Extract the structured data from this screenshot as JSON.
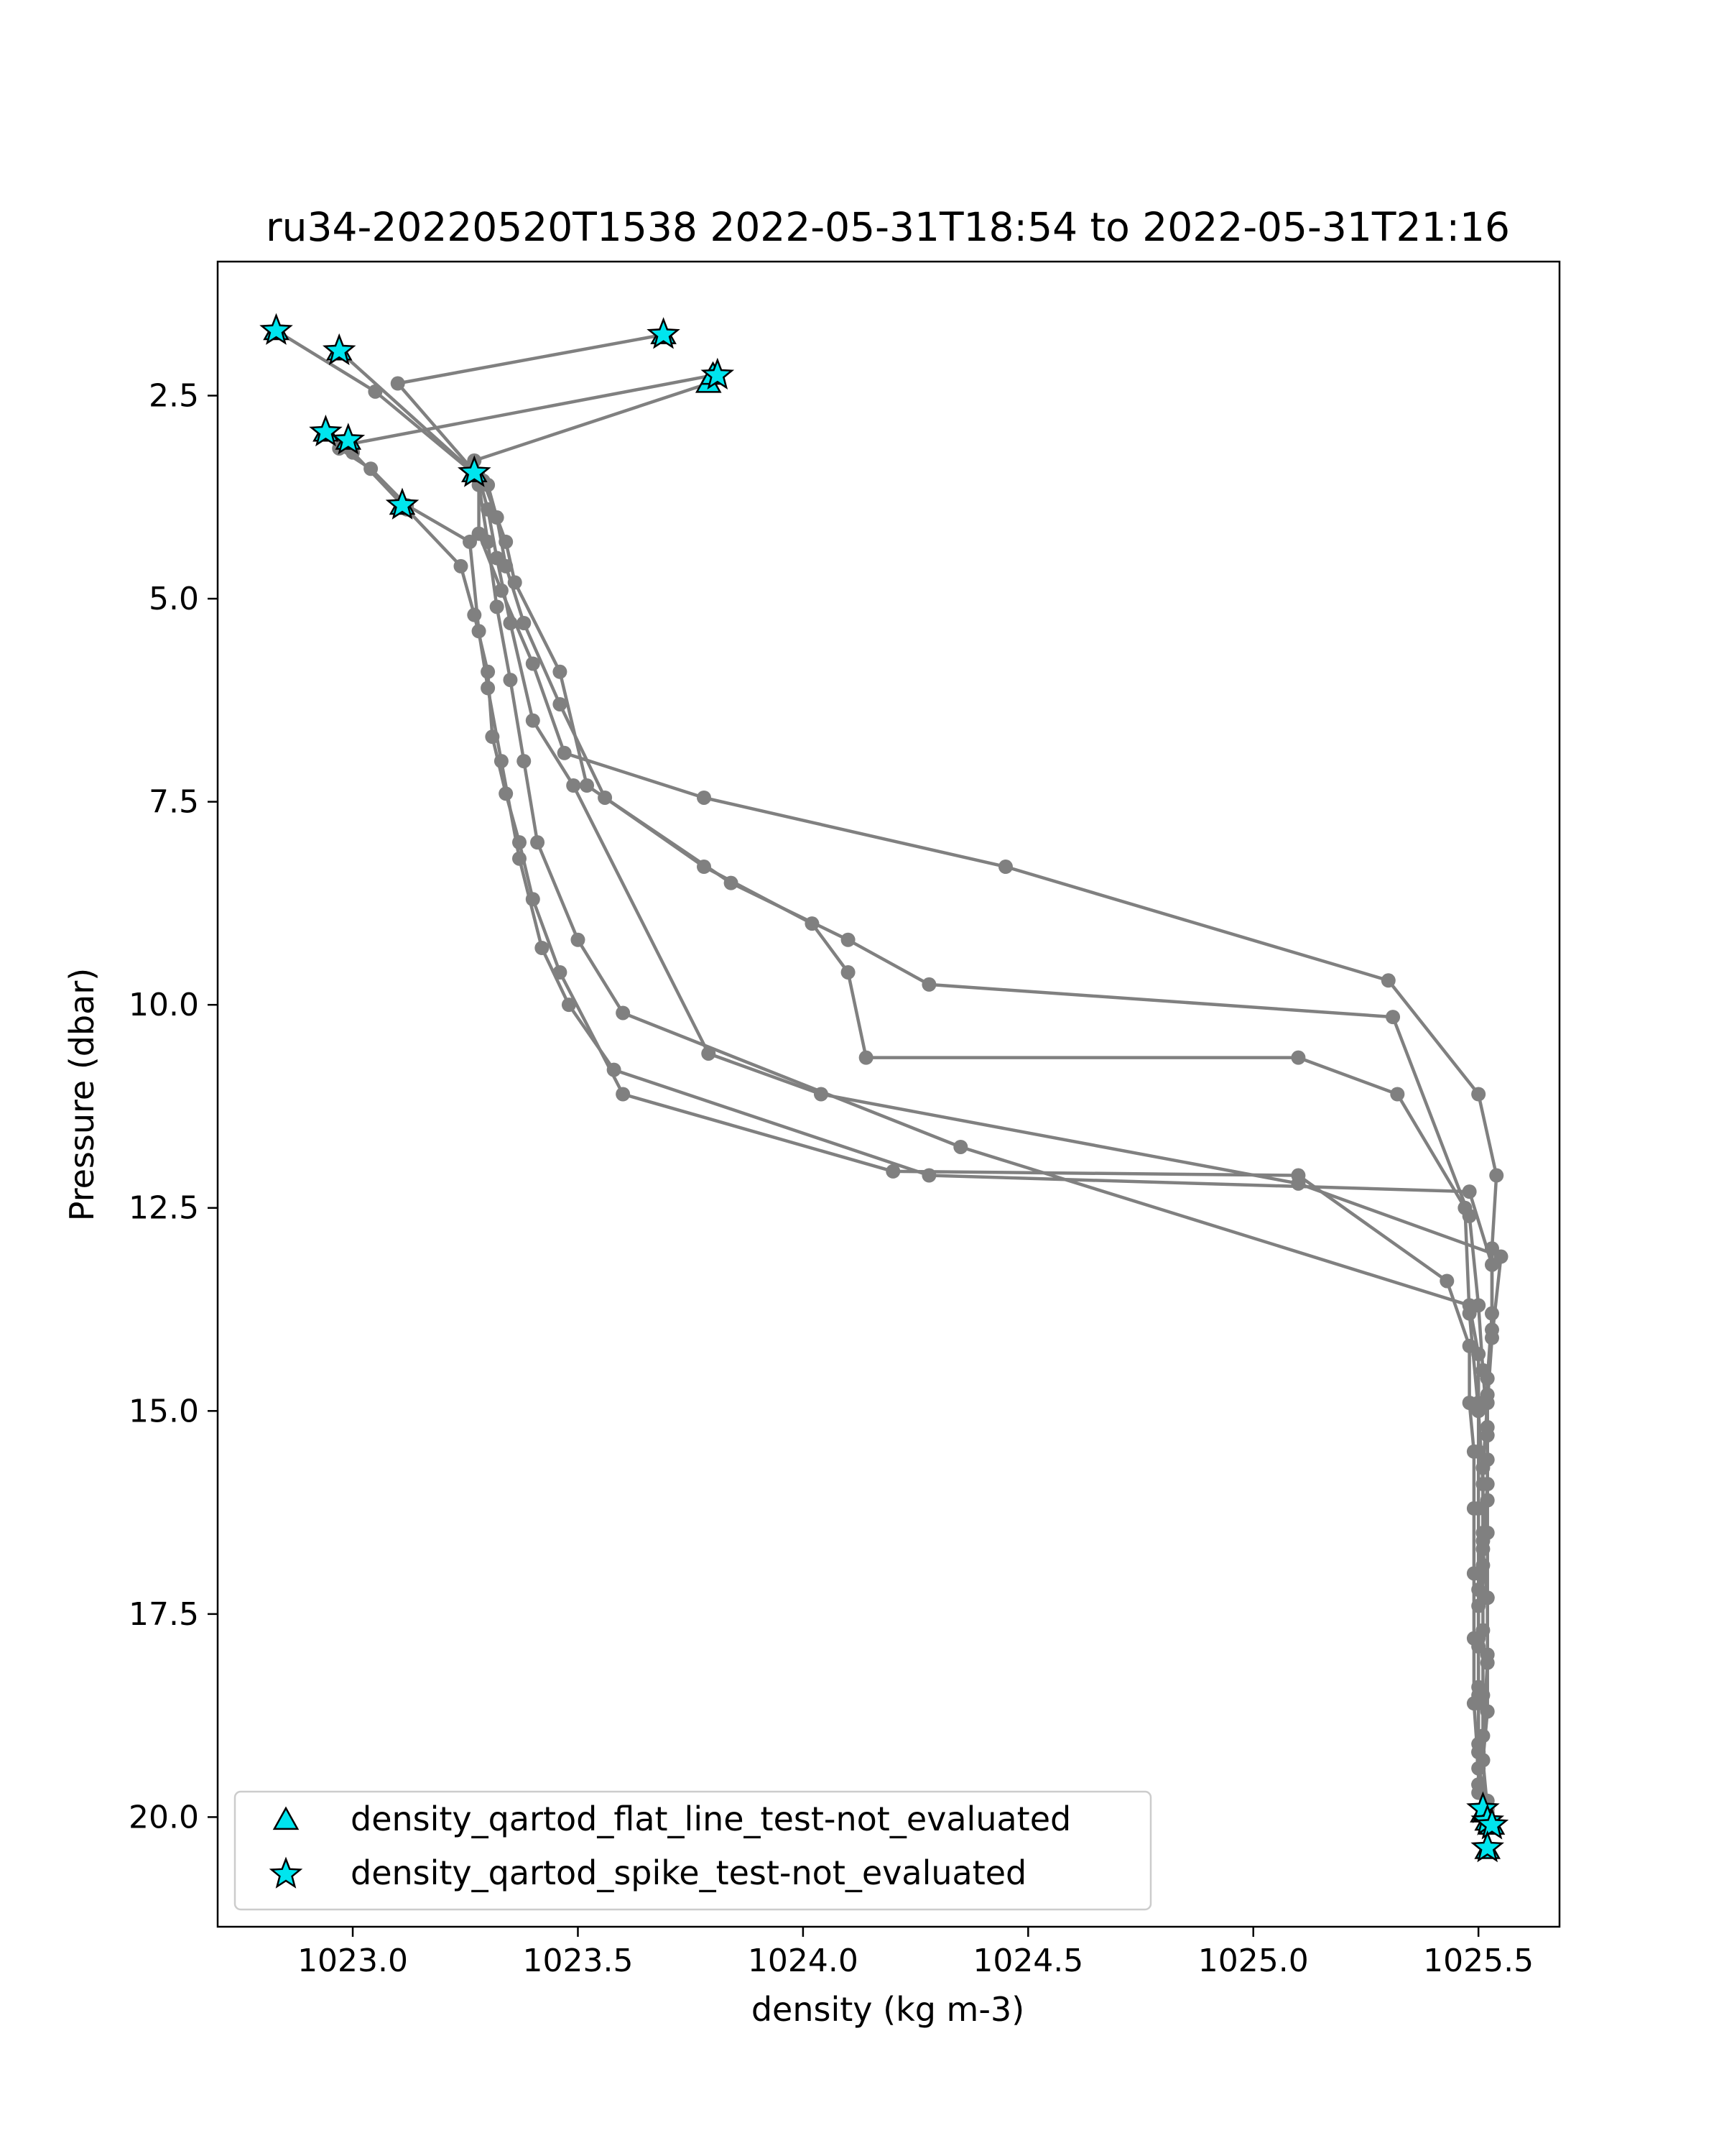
{
  "chart_data": {
    "type": "scatter",
    "title": "ru34-20220520T1538 2022-05-31T18:54 to 2022-05-31T21:16",
    "xlabel": "density (kg m-3)",
    "ylabel": "Pressure (dbar)",
    "xlim": [
      1022.7,
      1025.68
    ],
    "ylim": [
      21.35,
      0.85
    ],
    "y_inverted": true,
    "xticks": [
      1023.0,
      1023.5,
      1024.0,
      1024.5,
      1025.0,
      1025.5
    ],
    "xtick_labels": [
      "1023.0",
      "1023.5",
      "1024.0",
      "1024.5",
      "1025.0",
      "1025.5"
    ],
    "yticks": [
      2.5,
      5.0,
      7.5,
      10.0,
      12.5,
      15.0,
      17.5,
      20.0
    ],
    "ytick_labels": [
      "2.5",
      "5.0",
      "7.5",
      "10.0",
      "12.5",
      "15.0",
      "17.5",
      "20.0"
    ],
    "grid": false,
    "legend_position": "lower-left",
    "colors": {
      "profile": "#808080",
      "flag": "#00e5ee",
      "flag_edge": "#000000"
    },
    "profiles": [
      {
        "x": [
          1022.83,
          1023.05,
          1023.3,
          1023.32,
          1023.34,
          1023.38,
          1023.46,
          1023.56,
          1023.78,
          1024.02,
          1024.1,
          1024.14,
          1025.1,
          1025.32,
          1025.47,
          1025.48,
          1025.5,
          1025.51,
          1025.51,
          1025.5,
          1025.5,
          1025.5,
          1025.5,
          1025.51
        ],
        "y": [
          1.7,
          2.45,
          3.6,
          4.0,
          4.6,
          5.3,
          6.3,
          7.45,
          8.3,
          9.0,
          9.6,
          10.65,
          10.65,
          11.1,
          12.5,
          13.8,
          15.0,
          15.9,
          16.6,
          17.4,
          18.4,
          19.1,
          19.6,
          20.0
        ]
      },
      {
        "x": [
          1022.97,
          1023.29,
          1023.34,
          1023.36,
          1023.46,
          1023.52,
          1023.84,
          1024.1,
          1024.28,
          1025.31,
          1025.48,
          1025.5,
          1025.51,
          1025.52,
          1025.52,
          1025.51,
          1025.52,
          1025.52,
          1025.52,
          1025.51,
          1025.52,
          1025.52,
          1025.52
        ],
        "y": [
          1.95,
          3.55,
          4.3,
          4.8,
          5.9,
          7.3,
          8.5,
          9.2,
          9.75,
          10.15,
          12.6,
          13.7,
          14.5,
          15.2,
          15.9,
          16.7,
          17.3,
          18.0,
          18.7,
          19.3,
          19.9,
          20.4,
          20.1
        ]
      },
      {
        "x": [
          1023.69,
          1023.1,
          1023.28,
          1023.28,
          1023.33,
          1023.4,
          1023.47,
          1023.78,
          1024.45,
          1025.3,
          1025.5,
          1025.54,
          1025.53,
          1025.53,
          1025.52,
          1025.52,
          1025.52,
          1025.51,
          1025.51,
          1025.51,
          1025.51,
          1025.52
        ],
        "y": [
          1.75,
          2.35,
          3.5,
          4.2,
          4.9,
          5.8,
          6.9,
          7.45,
          8.3,
          9.7,
          11.1,
          12.1,
          13.0,
          13.8,
          14.6,
          15.3,
          16.1,
          16.9,
          17.7,
          18.5,
          19.3,
          20.05
        ]
      },
      {
        "x": [
          1023.79,
          1023.27,
          1023.3,
          1023.32,
          1023.35,
          1023.4,
          1023.49,
          1023.79,
          1024.04,
          1025.1,
          1025.55,
          1025.53,
          1025.52,
          1025.51,
          1025.51,
          1025.5,
          1025.5,
          1025.5,
          1025.5,
          1025.5,
          1025.51
        ],
        "y": [
          2.35,
          3.3,
          3.9,
          4.5,
          5.3,
          6.5,
          7.3,
          10.6,
          11.1,
          12.2,
          13.1,
          14.1,
          14.9,
          15.7,
          16.5,
          17.2,
          17.9,
          18.6,
          19.2,
          19.6,
          19.9
        ]
      },
      {
        "x": [
          1023.8,
          1022.99,
          1022.97,
          1023.04,
          1023.12,
          1023.26,
          1023.28,
          1023.3,
          1023.33,
          1023.37,
          1023.42,
          1023.48,
          1023.58,
          1024.28,
          1025.48,
          1025.53,
          1025.53,
          1025.52,
          1025.52,
          1025.52,
          1025.52,
          1025.52,
          1025.51
        ],
        "y": [
          2.25,
          3.1,
          3.15,
          3.4,
          3.85,
          4.3,
          5.4,
          6.1,
          7.0,
          8.2,
          9.3,
          10.0,
          10.8,
          12.1,
          12.3,
          13.2,
          14.0,
          14.8,
          15.6,
          16.5,
          17.3,
          18.1,
          19.0
        ]
      },
      {
        "x": [
          1022.94,
          1023.0,
          1023.12,
          1023.24,
          1023.27,
          1023.3,
          1023.31,
          1023.34,
          1023.37,
          1023.4,
          1023.46,
          1023.6,
          1024.2,
          1025.1,
          1025.43,
          1025.48,
          1025.48,
          1025.49,
          1025.49,
          1025.49,
          1025.49,
          1025.49,
          1025.5,
          1025.52
        ],
        "y": [
          2.95,
          3.2,
          3.9,
          4.6,
          5.2,
          5.9,
          6.7,
          7.4,
          8.0,
          8.7,
          9.6,
          11.1,
          12.05,
          12.1,
          13.4,
          14.2,
          14.9,
          15.5,
          16.2,
          17.0,
          17.8,
          18.6,
          19.4,
          19.8
        ]
      },
      {
        "x": [
          1023.27,
          1023.28,
          1023.3,
          1023.32,
          1023.35,
          1023.38,
          1023.41,
          1023.5,
          1023.6,
          1024.35,
          1025.48,
          1025.5,
          1025.5,
          1025.5,
          1025.5,
          1025.5,
          1025.5,
          1025.5,
          1025.5,
          1025.5,
          1025.52,
          1025.52
        ],
        "y": [
          3.45,
          3.6,
          4.3,
          5.1,
          6.0,
          7.0,
          8.0,
          9.2,
          10.1,
          11.75,
          13.7,
          14.3,
          14.9,
          15.5,
          16.2,
          17.0,
          17.8,
          18.5,
          19.2,
          19.7,
          19.95,
          20.4
        ]
      }
    ],
    "flags": [
      {
        "name": "density_qartod_flat_line_test-not_evaluated",
        "marker": "triangle",
        "points": [
          [
            1022.83,
            1.7
          ],
          [
            1022.97,
            1.95
          ],
          [
            1023.69,
            1.75
          ],
          [
            1023.79,
            2.35
          ],
          [
            1023.8,
            2.25
          ],
          [
            1022.94,
            2.95
          ],
          [
            1022.99,
            3.05
          ],
          [
            1023.27,
            3.45
          ],
          [
            1023.11,
            3.85
          ],
          [
            1025.51,
            19.95
          ],
          [
            1025.52,
            20.05
          ],
          [
            1025.53,
            20.1
          ],
          [
            1025.52,
            20.4
          ]
        ]
      },
      {
        "name": "density_qartod_spike_test-not_evaluated",
        "marker": "star",
        "points": [
          [
            1022.83,
            1.7
          ],
          [
            1022.97,
            1.95
          ],
          [
            1023.69,
            1.75
          ],
          [
            1023.81,
            2.25
          ],
          [
            1022.94,
            2.95
          ],
          [
            1022.99,
            3.05
          ],
          [
            1023.27,
            3.45
          ],
          [
            1023.11,
            3.85
          ],
          [
            1025.51,
            19.9
          ],
          [
            1025.52,
            20.05
          ],
          [
            1025.53,
            20.1
          ],
          [
            1025.52,
            20.38
          ]
        ]
      }
    ]
  }
}
